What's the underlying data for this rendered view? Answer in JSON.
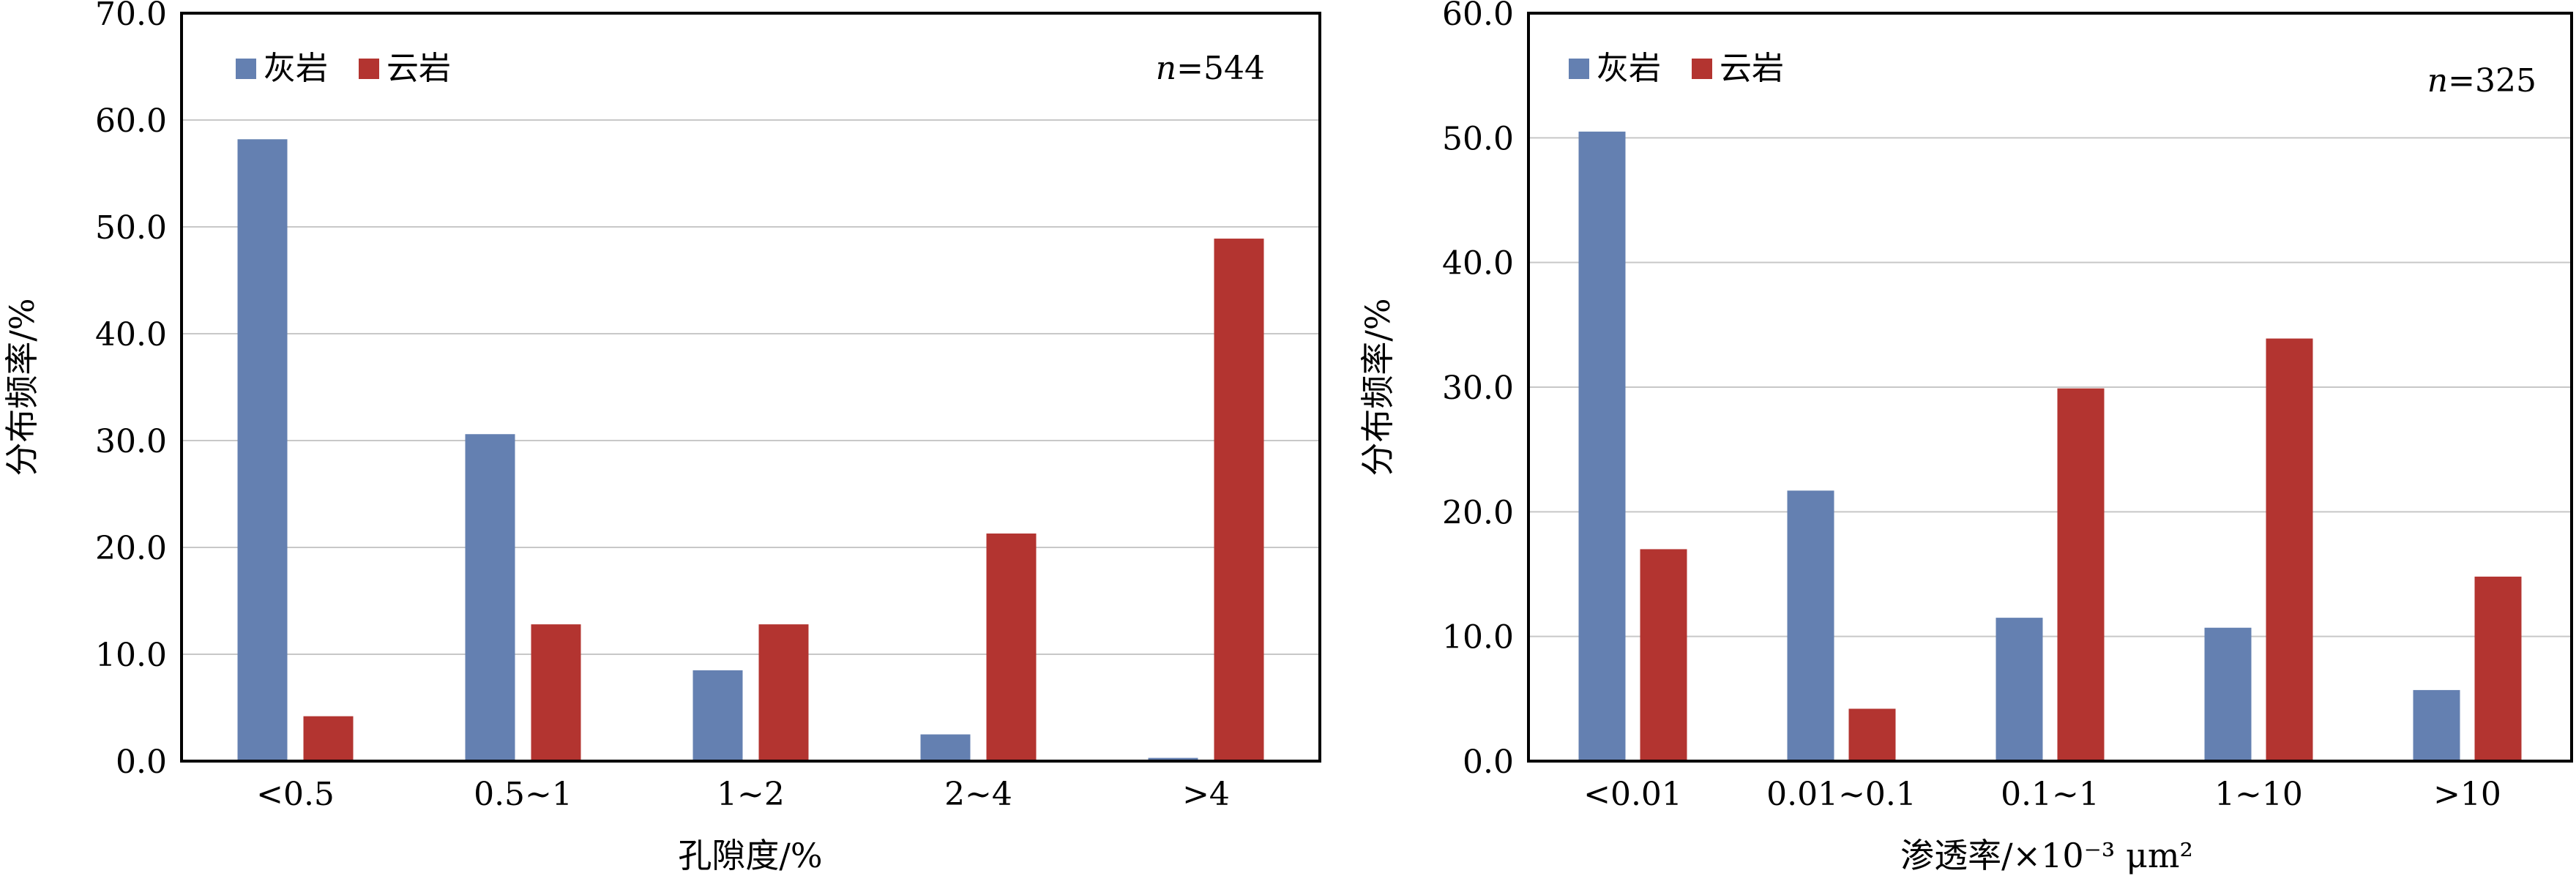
{
  "colors": {
    "limestone": "#6480b1",
    "dolomite": "#b33430",
    "grid": "#c8c8c8",
    "frame": "#000000"
  },
  "chart_data": [
    {
      "type": "bar",
      "title": "",
      "xlabel": "孔隙度/%",
      "ylabel": "分布频率/%",
      "annotation_prefix": "n",
      "annotation_value": "=544",
      "ylim": [
        0,
        70
      ],
      "yticks": [
        0,
        10,
        20,
        30,
        40,
        50,
        60,
        70
      ],
      "ytick_labels": [
        "0.0",
        "10.0",
        "20.0",
        "30.0",
        "40.0",
        "50.0",
        "60.0",
        "70.0"
      ],
      "grid": true,
      "legend_position": "top-left",
      "categories": [
        "<0.5",
        "0.5~1",
        "1~2",
        "2~4",
        ">4"
      ],
      "series": [
        {
          "name": "灰岩",
          "values": [
            58.2,
            30.6,
            8.5,
            2.5,
            0.3
          ]
        },
        {
          "name": "云岩",
          "values": [
            4.2,
            12.8,
            12.8,
            21.3,
            48.9
          ]
        }
      ]
    },
    {
      "type": "bar",
      "title": "",
      "xlabel": "渗透率/×10⁻³ μm²",
      "ylabel": "分布频率/%",
      "annotation_prefix": "n",
      "annotation_value": "=325",
      "ylim": [
        0,
        60
      ],
      "yticks": [
        0,
        10,
        20,
        30,
        40,
        50,
        60
      ],
      "ytick_labels": [
        "0.0",
        "10.0",
        "20.0",
        "30.0",
        "40.0",
        "50.0",
        "60.0"
      ],
      "grid": true,
      "legend_position": "top-left",
      "categories": [
        "<0.01",
        "0.01~0.1",
        "0.1~1",
        "1~10",
        ">10"
      ],
      "series": [
        {
          "name": "灰岩",
          "values": [
            50.5,
            21.7,
            11.5,
            10.7,
            5.7
          ]
        },
        {
          "name": "云岩",
          "values": [
            17.0,
            4.2,
            29.9,
            33.9,
            14.8
          ]
        }
      ]
    }
  ]
}
